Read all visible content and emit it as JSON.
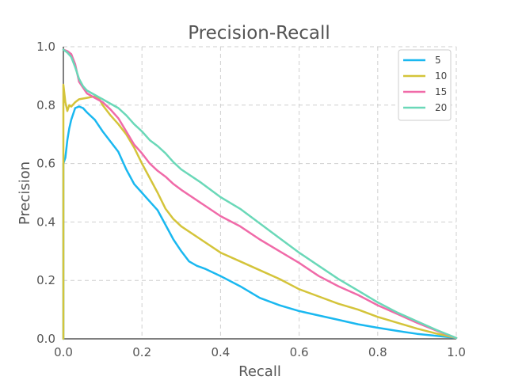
{
  "chart_data": {
    "type": "line",
    "title": "Precision-Recall",
    "xlabel": "Recall",
    "ylabel": "Precision",
    "xlim": [
      0,
      1
    ],
    "ylim": [
      0,
      1
    ],
    "xticks": [
      "0.0",
      "0.2",
      "0.4",
      "0.6",
      "0.8",
      "1.0"
    ],
    "yticks": [
      "0.0",
      "0.2",
      "0.4",
      "0.6",
      "0.8",
      "1.0"
    ],
    "grid": true,
    "legend": "top-right",
    "series": [
      {
        "name": "5",
        "color": "#1ab8f0",
        "points": [
          [
            0,
            0
          ],
          [
            0,
            0.6
          ],
          [
            0.005,
            0.62
          ],
          [
            0.01,
            0.68
          ],
          [
            0.015,
            0.72
          ],
          [
            0.02,
            0.75
          ],
          [
            0.025,
            0.77
          ],
          [
            0.03,
            0.79
          ],
          [
            0.04,
            0.795
          ],
          [
            0.05,
            0.79
          ],
          [
            0.06,
            0.775
          ],
          [
            0.08,
            0.75
          ],
          [
            0.1,
            0.71
          ],
          [
            0.12,
            0.675
          ],
          [
            0.14,
            0.64
          ],
          [
            0.16,
            0.58
          ],
          [
            0.18,
            0.53
          ],
          [
            0.2,
            0.5
          ],
          [
            0.22,
            0.47
          ],
          [
            0.24,
            0.44
          ],
          [
            0.26,
            0.39
          ],
          [
            0.28,
            0.34
          ],
          [
            0.3,
            0.3
          ],
          [
            0.32,
            0.265
          ],
          [
            0.34,
            0.25
          ],
          [
            0.36,
            0.24
          ],
          [
            0.4,
            0.215
          ],
          [
            0.45,
            0.18
          ],
          [
            0.5,
            0.14
          ],
          [
            0.55,
            0.115
          ],
          [
            0.6,
            0.095
          ],
          [
            0.65,
            0.08
          ],
          [
            0.7,
            0.065
          ],
          [
            0.75,
            0.05
          ],
          [
            0.8,
            0.038
          ],
          [
            0.85,
            0.027
          ],
          [
            0.9,
            0.017
          ],
          [
            0.95,
            0.01
          ],
          [
            1.0,
            0.003
          ]
        ]
      },
      {
        "name": "10",
        "color": "#d4c43a",
        "points": [
          [
            0,
            0
          ],
          [
            0,
            0.87
          ],
          [
            0.005,
            0.81
          ],
          [
            0.01,
            0.78
          ],
          [
            0.015,
            0.8
          ],
          [
            0.02,
            0.795
          ],
          [
            0.03,
            0.81
          ],
          [
            0.04,
            0.82
          ],
          [
            0.06,
            0.825
          ],
          [
            0.08,
            0.83
          ],
          [
            0.09,
            0.825
          ],
          [
            0.1,
            0.8
          ],
          [
            0.12,
            0.765
          ],
          [
            0.14,
            0.735
          ],
          [
            0.16,
            0.7
          ],
          [
            0.18,
            0.655
          ],
          [
            0.2,
            0.6
          ],
          [
            0.22,
            0.55
          ],
          [
            0.24,
            0.5
          ],
          [
            0.26,
            0.445
          ],
          [
            0.28,
            0.41
          ],
          [
            0.3,
            0.385
          ],
          [
            0.35,
            0.34
          ],
          [
            0.4,
            0.295
          ],
          [
            0.45,
            0.265
          ],
          [
            0.5,
            0.235
          ],
          [
            0.55,
            0.205
          ],
          [
            0.6,
            0.17
          ],
          [
            0.65,
            0.145
          ],
          [
            0.7,
            0.12
          ],
          [
            0.75,
            0.1
          ],
          [
            0.8,
            0.075
          ],
          [
            0.85,
            0.055
          ],
          [
            0.9,
            0.035
          ],
          [
            0.95,
            0.018
          ],
          [
            1.0,
            0.003
          ]
        ]
      },
      {
        "name": "15",
        "color": "#f06aa8",
        "points": [
          [
            0,
            0.99
          ],
          [
            0.01,
            0.985
          ],
          [
            0.02,
            0.975
          ],
          [
            0.03,
            0.94
          ],
          [
            0.04,
            0.88
          ],
          [
            0.05,
            0.86
          ],
          [
            0.06,
            0.84
          ],
          [
            0.08,
            0.825
          ],
          [
            0.1,
            0.81
          ],
          [
            0.12,
            0.785
          ],
          [
            0.14,
            0.755
          ],
          [
            0.16,
            0.71
          ],
          [
            0.18,
            0.665
          ],
          [
            0.2,
            0.635
          ],
          [
            0.22,
            0.6
          ],
          [
            0.24,
            0.575
          ],
          [
            0.26,
            0.555
          ],
          [
            0.28,
            0.53
          ],
          [
            0.3,
            0.51
          ],
          [
            0.35,
            0.465
          ],
          [
            0.4,
            0.42
          ],
          [
            0.45,
            0.385
          ],
          [
            0.5,
            0.34
          ],
          [
            0.55,
            0.3
          ],
          [
            0.6,
            0.26
          ],
          [
            0.65,
            0.215
          ],
          [
            0.7,
            0.18
          ],
          [
            0.75,
            0.15
          ],
          [
            0.8,
            0.115
          ],
          [
            0.85,
            0.085
          ],
          [
            0.9,
            0.055
          ],
          [
            0.95,
            0.028
          ],
          [
            1.0,
            0.003
          ]
        ]
      },
      {
        "name": "20",
        "color": "#6ad8b8",
        "points": [
          [
            0,
            0.99
          ],
          [
            0.01,
            0.98
          ],
          [
            0.02,
            0.965
          ],
          [
            0.03,
            0.93
          ],
          [
            0.04,
            0.89
          ],
          [
            0.05,
            0.865
          ],
          [
            0.06,
            0.85
          ],
          [
            0.08,
            0.835
          ],
          [
            0.1,
            0.82
          ],
          [
            0.12,
            0.805
          ],
          [
            0.14,
            0.79
          ],
          [
            0.16,
            0.765
          ],
          [
            0.18,
            0.735
          ],
          [
            0.2,
            0.71
          ],
          [
            0.22,
            0.68
          ],
          [
            0.24,
            0.66
          ],
          [
            0.26,
            0.635
          ],
          [
            0.28,
            0.605
          ],
          [
            0.3,
            0.58
          ],
          [
            0.35,
            0.535
          ],
          [
            0.4,
            0.485
          ],
          [
            0.45,
            0.445
          ],
          [
            0.5,
            0.395
          ],
          [
            0.55,
            0.345
          ],
          [
            0.6,
            0.295
          ],
          [
            0.65,
            0.25
          ],
          [
            0.7,
            0.205
          ],
          [
            0.75,
            0.165
          ],
          [
            0.8,
            0.125
          ],
          [
            0.85,
            0.09
          ],
          [
            0.9,
            0.06
          ],
          [
            0.95,
            0.03
          ],
          [
            1.0,
            0.003
          ]
        ]
      }
    ]
  }
}
